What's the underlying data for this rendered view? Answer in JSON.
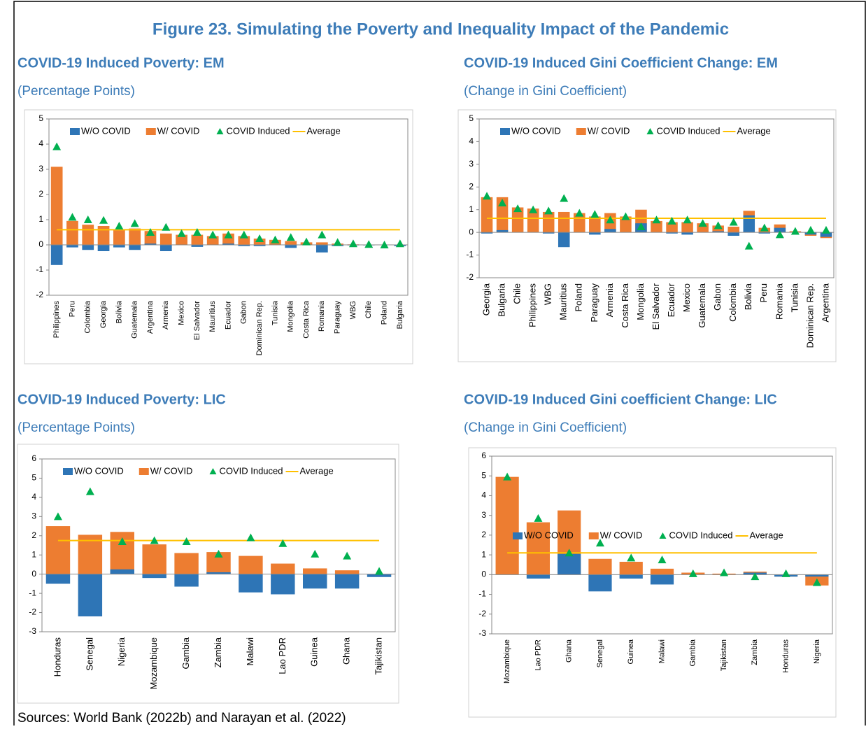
{
  "title": "Figure 23. Simulating the Poverty and Inequality Impact of the Pandemic",
  "source": "Sources: World Bank (2022b) and Narayan et al. (2022)",
  "chart_data": [
    {
      "type": "bar",
      "title": "COVID-19 Induced Poverty: EM",
      "subtitle": "(Percentage Points)",
      "categories": [
        "Philippines",
        "Peru",
        "Colombia",
        "Georgia",
        "Bolivia",
        "Guatemala",
        "Argentina",
        "Armenia",
        "Mexico",
        "El Salvador",
        "Mauritius",
        "Ecuador",
        "Gabon",
        "Dominican Rep.",
        "Tunisia",
        "Mongolia",
        "Costa Rica",
        "Romania",
        "Paraguay",
        "WBG",
        "Chile",
        "Poland",
        "Bulgaria"
      ],
      "series": [
        {
          "name": "W/O COVID",
          "color": "#2e75b6",
          "values": [
            -0.8,
            -0.1,
            -0.2,
            -0.25,
            -0.1,
            -0.2,
            0.05,
            -0.25,
            0,
            -0.08,
            0,
            0.05,
            -0.05,
            -0.05,
            0,
            -0.12,
            0,
            -0.3,
            -0.05,
            -0.02,
            -0.02,
            0,
            -0.05
          ]
        },
        {
          "name": "W/ COVID",
          "color": "#ed7d31",
          "values": [
            3.1,
            0.95,
            0.8,
            0.75,
            0.6,
            0.65,
            0.55,
            0.45,
            0.4,
            0.4,
            0.35,
            0.45,
            0.35,
            0.25,
            0.2,
            0.15,
            0.1,
            0.1,
            0.05,
            0.02,
            0,
            0,
            0
          ]
        },
        {
          "name": "COVID Induced",
          "color": "#00b050",
          "values": [
            3.9,
            1.1,
            1.0,
            0.98,
            0.75,
            0.85,
            0.5,
            0.7,
            0.45,
            0.5,
            0.4,
            0.4,
            0.4,
            0.25,
            0.2,
            0.3,
            0.12,
            0.4,
            0.1,
            0.05,
            0.02,
            0,
            0.05
          ]
        },
        {
          "name": "Average",
          "color": "#ffc000",
          "value": 0.6
        }
      ],
      "ylim": [
        -2,
        5
      ],
      "yticks": [
        -2,
        -1,
        0,
        1,
        2,
        3,
        4,
        5
      ],
      "legend": "top"
    },
    {
      "type": "bar",
      "title": "COVID-19 Induced Gini Coefficient Change: EM",
      "subtitle": "(Change in Gini Coefficient)",
      "categories": [
        "Georgia",
        "Bulgaria",
        "Chile",
        "Philippines",
        "WBG",
        "Mauritius",
        "Poland",
        "Paraguay",
        "Armenia",
        "Costa Rica",
        "Mongolia",
        "El Salvador",
        "Ecuador",
        "Mexico",
        "Guatemala",
        "Gabon",
        "Colombia",
        "Bolivia",
        "Peru",
        "Romania",
        "Tunisia",
        "Dominican Rep.",
        "Argentina"
      ],
      "series": [
        {
          "name": "W/O COVID",
          "color": "#2e75b6",
          "values": [
            -0.05,
            0.1,
            0,
            0,
            -0.05,
            -0.65,
            0,
            -0.1,
            0.15,
            0,
            0.4,
            0,
            -0.05,
            -0.1,
            0,
            0.05,
            -0.15,
            0.75,
            -0.05,
            0.2,
            0,
            -0.1,
            -0.2
          ]
        },
        {
          "name": "W/ COVID",
          "color": "#ed7d31",
          "values": [
            1.55,
            1.55,
            1.1,
            1.05,
            0.9,
            0.9,
            0.85,
            0.7,
            0.85,
            0.7,
            1.0,
            0.5,
            0.45,
            0.45,
            0.4,
            0.3,
            0.25,
            0.95,
            0.2,
            0.35,
            0.05,
            -0.15,
            -0.25
          ]
        },
        {
          "name": "COVID Induced",
          "color": "#00b050",
          "values": [
            1.6,
            1.3,
            1.05,
            1.0,
            0.95,
            1.5,
            0.85,
            0.8,
            0.55,
            0.7,
            0.25,
            0.55,
            0.5,
            0.55,
            0.4,
            0.3,
            0.45,
            -0.6,
            0.2,
            -0.1,
            0.05,
            0.1,
            0.1
          ]
        },
        {
          "name": "Average",
          "color": "#ffc000",
          "value": 0.62
        }
      ],
      "ylim": [
        -2,
        5
      ],
      "yticks": [
        -2,
        -1,
        0,
        1,
        2,
        3,
        4,
        5
      ],
      "legend": "top"
    },
    {
      "type": "bar",
      "title": "COVID-19 Induced Poverty: LIC",
      "subtitle": "(Percentage Points)",
      "categories": [
        "Honduras",
        "Senegal",
        "Nigeria",
        "Mozambique",
        "Gambia",
        "Zambia",
        "Malawi",
        "Lao PDR",
        "Guinea",
        "Ghana",
        "Tajikistan"
      ],
      "series": [
        {
          "name": "W/O COVID",
          "color": "#2e75b6",
          "values": [
            -0.5,
            -2.2,
            0.25,
            -0.2,
            -0.65,
            0.1,
            -0.95,
            -1.05,
            -0.75,
            -0.75,
            -0.15
          ]
        },
        {
          "name": "W/ COVID",
          "color": "#ed7d31",
          "values": [
            2.5,
            2.05,
            2.2,
            1.55,
            1.1,
            1.15,
            0.95,
            0.55,
            0.3,
            0.2,
            -0.05
          ]
        },
        {
          "name": "COVID Induced",
          "color": "#00b050",
          "values": [
            3.0,
            4.3,
            1.7,
            1.75,
            1.7,
            1.05,
            1.9,
            1.6,
            1.05,
            0.95,
            0.15
          ]
        },
        {
          "name": "Average",
          "color": "#ffc000",
          "value": 1.75
        }
      ],
      "ylim": [
        -3,
        6
      ],
      "yticks": [
        -3,
        -2,
        -1,
        0,
        1,
        2,
        3,
        4,
        5,
        6
      ],
      "legend": "top"
    },
    {
      "type": "bar",
      "title": "COVID-19 Induced Gini coefficient Change: LIC",
      "subtitle": "(Change in Gini Coefficient)",
      "categories": [
        "Mozambique",
        "Lao PDR",
        "Ghana",
        "Senegal",
        "Guinea",
        "Malawi",
        "Gambia",
        "Tajikistan",
        "Zambia",
        "Honduras",
        "Nigeria"
      ],
      "series": [
        {
          "name": "W/O COVID",
          "color": "#2e75b6",
          "values": [
            0,
            -0.2,
            1.05,
            -0.85,
            -0.2,
            -0.5,
            0,
            0,
            0.1,
            -0.1,
            -0.1
          ]
        },
        {
          "name": "W/ COVID",
          "color": "#ed7d31",
          "values": [
            4.95,
            2.65,
            3.25,
            0.8,
            0.65,
            0.3,
            0.1,
            0.05,
            0.15,
            -0.1,
            -0.55
          ]
        },
        {
          "name": "COVID Induced",
          "color": "#00b050",
          "values": [
            4.95,
            2.85,
            1.1,
            1.6,
            0.85,
            0.75,
            0.05,
            0.1,
            -0.1,
            0.05,
            -0.4
          ]
        },
        {
          "name": "Average",
          "color": "#ffc000",
          "value": 1.1
        }
      ],
      "ylim": [
        -3,
        6
      ],
      "yticks": [
        -3,
        -2,
        -1,
        0,
        1,
        2,
        3,
        4,
        5,
        6
      ],
      "legend": "middle"
    }
  ]
}
